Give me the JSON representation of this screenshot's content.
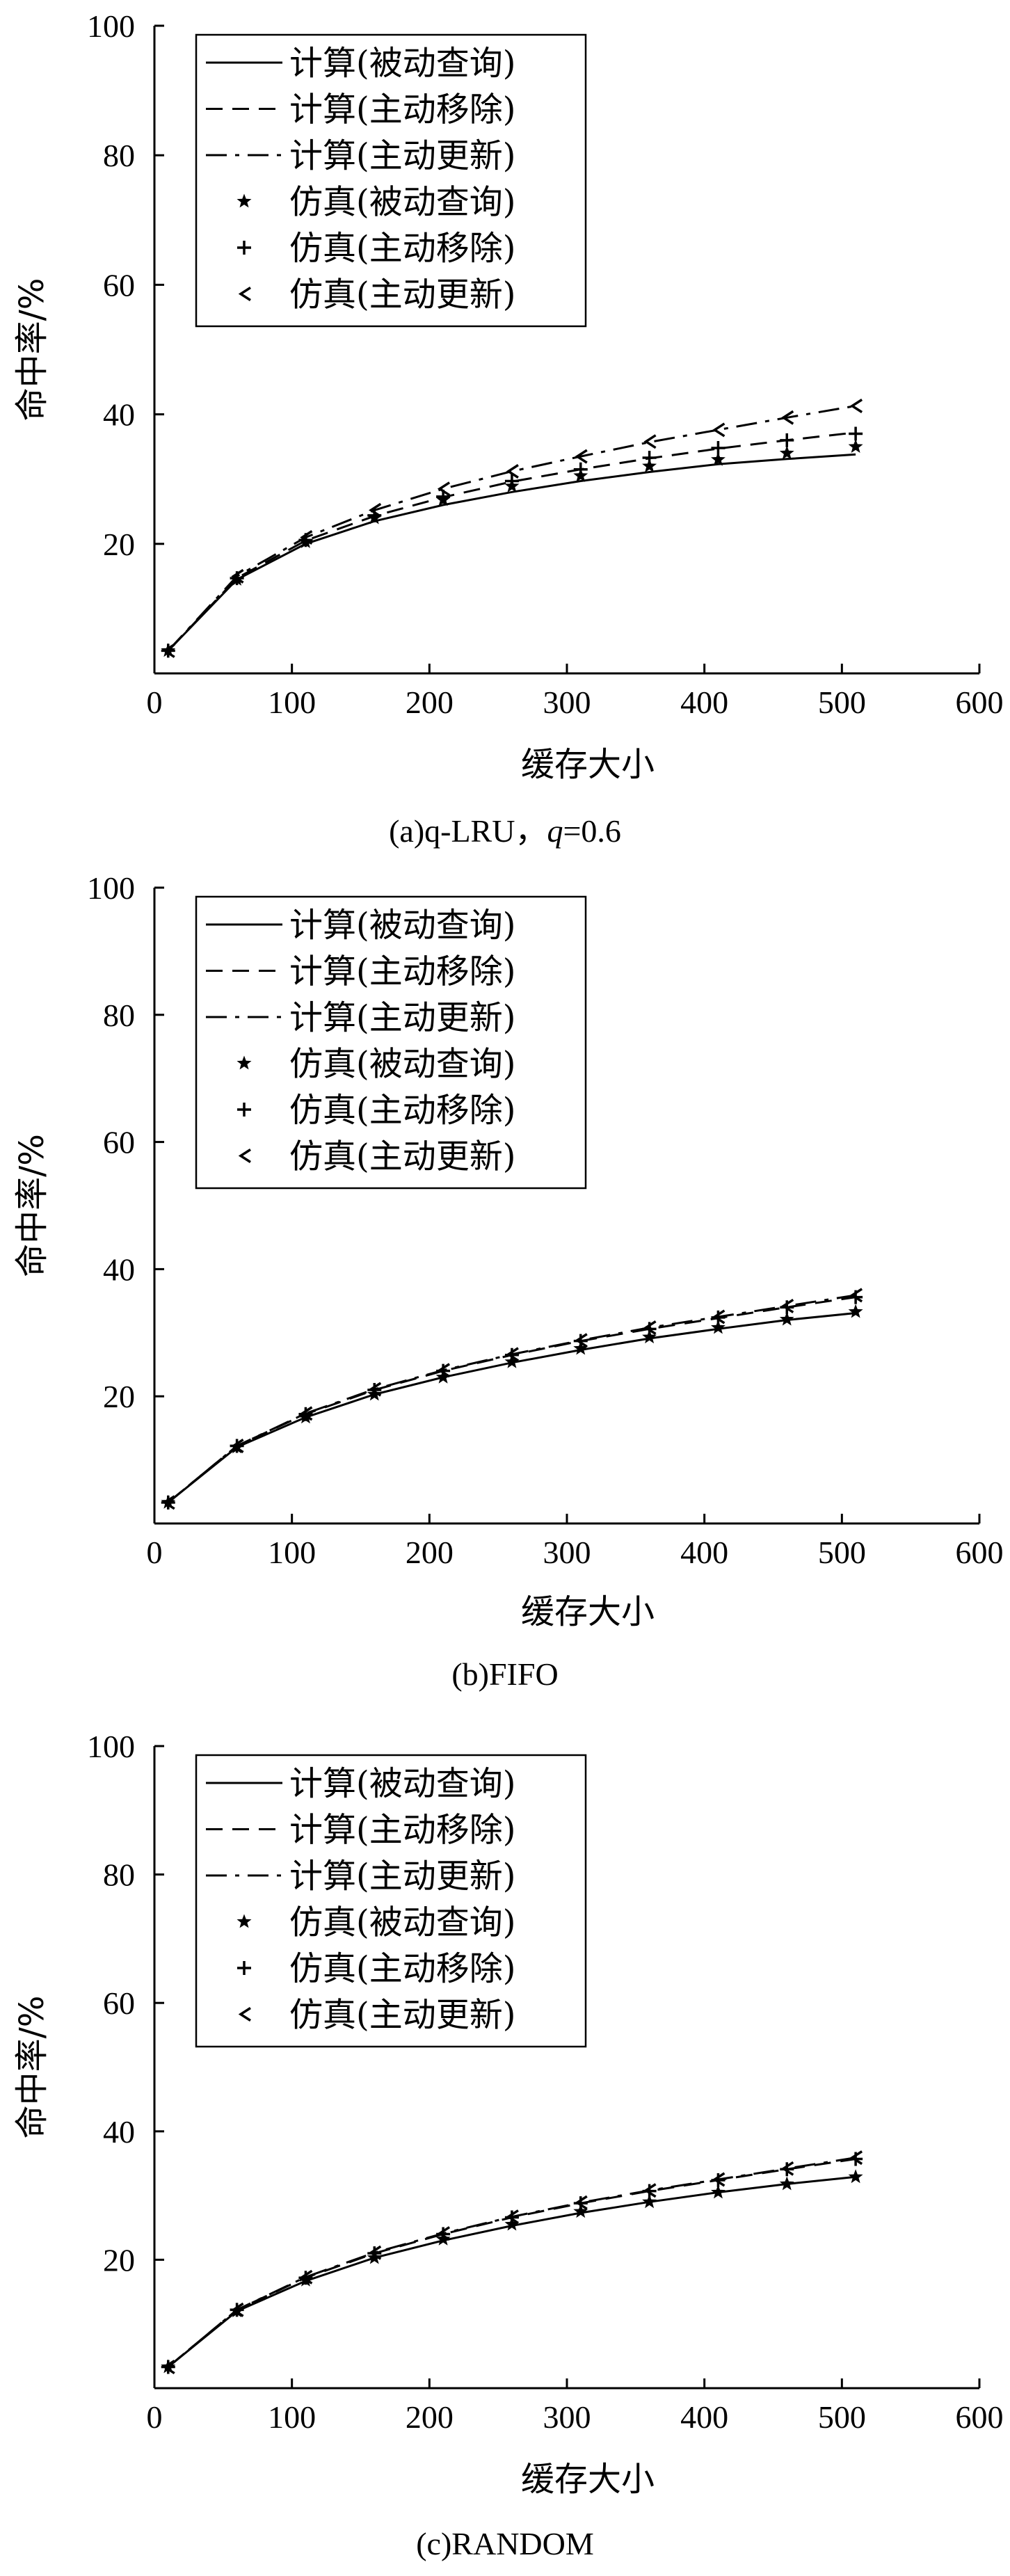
{
  "chart_data": [
    {
      "type": "line",
      "caption": "(a)q-LRU，q=0.6",
      "caption_parts": {
        "prefix": "(a)q-LRU，",
        "var": "q",
        "suffix": "=0.6"
      },
      "xlabel": "缓存大小",
      "ylabel": "命中率/%",
      "xlim": [
        0,
        600
      ],
      "ylim": [
        0,
        100
      ],
      "xticks": [
        0,
        100,
        200,
        300,
        400,
        500,
        600
      ],
      "yticks": [
        20,
        40,
        60,
        80,
        100
      ],
      "legend_position": "top-left",
      "x": [
        10,
        60,
        110,
        160,
        210,
        260,
        310,
        360,
        410,
        460,
        510
      ],
      "series": [
        {
          "name": "计算(被动查询)",
          "style": "solid",
          "values": [
            3.5,
            14.5,
            20.0,
            23.5,
            26.0,
            28.0,
            29.7,
            31.1,
            32.3,
            33.1,
            33.8
          ]
        },
        {
          "name": "计算(主动移除)",
          "style": "dashed",
          "values": [
            3.5,
            14.7,
            20.5,
            24.3,
            27.2,
            29.6,
            31.5,
            33.2,
            34.7,
            36.0,
            37.2
          ]
        },
        {
          "name": "计算(主动更新)",
          "style": "dashdot",
          "values": [
            3.5,
            15.0,
            21.0,
            25.2,
            28.5,
            31.2,
            33.5,
            35.7,
            37.6,
            39.5,
            41.3
          ]
        },
        {
          "name": "仿真(被动查询)",
          "style": "marker-star",
          "values": [
            3.5,
            14.5,
            20.3,
            24.0,
            26.8,
            28.9,
            30.5,
            32.0,
            33.0,
            34.0,
            35.0
          ]
        },
        {
          "name": "仿真(主动移除)",
          "style": "marker-plus",
          "values": [
            3.5,
            14.7,
            20.6,
            24.4,
            27.3,
            29.7,
            31.5,
            33.3,
            34.8,
            36.0,
            37.0
          ]
        },
        {
          "name": "仿真(主动更新)",
          "style": "marker-tri",
          "values": [
            3.5,
            15.0,
            21.0,
            25.2,
            28.5,
            31.2,
            33.5,
            35.8,
            37.6,
            39.5,
            41.3
          ]
        }
      ]
    },
    {
      "type": "line",
      "caption": "(b)FIFO",
      "caption_parts": {
        "prefix": "(b)FIFO",
        "var": "",
        "suffix": ""
      },
      "xlabel": "缓存大小",
      "ylabel": "命中率/%",
      "xlim": [
        0,
        600
      ],
      "ylim": [
        0,
        100
      ],
      "xticks": [
        0,
        100,
        200,
        300,
        400,
        500,
        600
      ],
      "yticks": [
        20,
        40,
        60,
        80,
        100
      ],
      "legend_position": "top-left",
      "x": [
        10,
        60,
        110,
        160,
        210,
        260,
        310,
        360,
        410,
        460,
        510
      ],
      "series": [
        {
          "name": "计算(被动查询)",
          "style": "solid",
          "values": [
            3.3,
            12.0,
            16.7,
            20.3,
            23.0,
            25.3,
            27.3,
            29.1,
            30.6,
            32.0,
            33.1
          ]
        },
        {
          "name": "计算(主动移除)",
          "style": "dashed",
          "values": [
            3.3,
            12.2,
            17.2,
            21.0,
            24.0,
            26.5,
            28.7,
            30.6,
            32.3,
            34.0,
            35.6
          ]
        },
        {
          "name": "计算(主动更新)",
          "style": "dashdot",
          "values": [
            3.3,
            12.2,
            17.3,
            21.1,
            24.1,
            26.6,
            28.8,
            30.8,
            32.5,
            34.2,
            35.9
          ]
        },
        {
          "name": "仿真(被动查询)",
          "style": "marker-star",
          "values": [
            3.3,
            12.0,
            16.7,
            20.3,
            23.0,
            25.4,
            27.5,
            29.3,
            30.8,
            32.1,
            33.3
          ]
        },
        {
          "name": "仿真(主动移除)",
          "style": "marker-plus",
          "values": [
            3.3,
            12.2,
            17.2,
            21.0,
            24.0,
            26.5,
            28.7,
            30.6,
            32.4,
            34.0,
            35.6
          ]
        },
        {
          "name": "仿真(主动更新)",
          "style": "marker-tri",
          "values": [
            3.3,
            12.2,
            17.3,
            21.1,
            24.1,
            26.6,
            28.8,
            30.8,
            32.5,
            34.2,
            35.9
          ]
        }
      ]
    },
    {
      "type": "line",
      "caption": "(c)RANDOM",
      "caption_parts": {
        "prefix": "(c)RANDOM",
        "var": "",
        "suffix": ""
      },
      "xlabel": "缓存大小",
      "ylabel": "命中率/%",
      "xlim": [
        0,
        600
      ],
      "ylim": [
        0,
        100
      ],
      "xticks": [
        0,
        100,
        200,
        300,
        400,
        500,
        600
      ],
      "yticks": [
        20,
        40,
        60,
        80,
        100
      ],
      "legend_position": "top-left",
      "x": [
        10,
        60,
        110,
        160,
        210,
        260,
        310,
        360,
        410,
        460,
        510
      ],
      "series": [
        {
          "name": "计算(被动查询)",
          "style": "solid",
          "values": [
            3.3,
            12.0,
            16.7,
            20.3,
            23.0,
            25.3,
            27.3,
            29.0,
            30.5,
            31.8,
            32.9
          ]
        },
        {
          "name": "计算(主动移除)",
          "style": "dashed",
          "values": [
            3.3,
            12.2,
            17.2,
            21.0,
            24.0,
            26.6,
            28.8,
            30.7,
            32.4,
            34.1,
            35.7
          ]
        },
        {
          "name": "计算(主动更新)",
          "style": "dashdot",
          "values": [
            3.3,
            12.2,
            17.3,
            21.1,
            24.1,
            26.7,
            28.9,
            30.8,
            32.5,
            34.2,
            35.9
          ]
        },
        {
          "name": "仿真(被动查询)",
          "style": "marker-star",
          "values": [
            3.3,
            12.0,
            16.8,
            20.3,
            23.2,
            25.5,
            27.5,
            29.0,
            30.5,
            31.8,
            32.9
          ]
        },
        {
          "name": "仿真(主动移除)",
          "style": "marker-plus",
          "values": [
            3.3,
            12.2,
            17.2,
            21.0,
            24.0,
            26.6,
            28.8,
            30.7,
            32.4,
            34.1,
            35.7
          ]
        },
        {
          "name": "仿真(主动更新)",
          "style": "marker-tri",
          "values": [
            3.3,
            12.2,
            17.3,
            21.1,
            24.1,
            26.7,
            28.9,
            30.8,
            32.5,
            34.2,
            35.9
          ]
        }
      ]
    }
  ]
}
